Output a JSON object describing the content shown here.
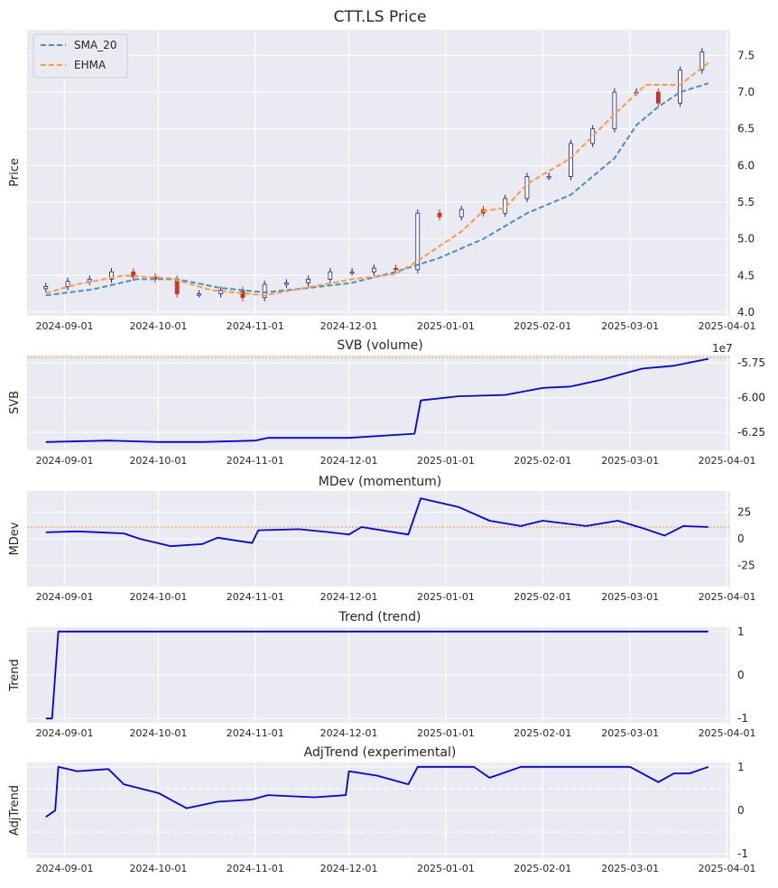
{
  "chart_data": [
    {
      "type": "line",
      "panel": "price",
      "title": "CTT.LS Price",
      "ylabel": "Price",
      "ylim": [
        3.95,
        7.85
      ],
      "yticks": [
        4.0,
        4.5,
        5.0,
        5.5,
        6.0,
        6.5,
        7.0,
        7.5
      ],
      "ytick_labels": [
        "4.0",
        "4.5",
        "5.0",
        "5.5",
        "6.0",
        "6.5",
        "7.0",
        "7.5"
      ],
      "yaxis_side": "right",
      "legend_position": "top-left",
      "candlesticks": {
        "description": "daily OHLC candles",
        "up_color": "#ffffff",
        "down_color": "#c0392b",
        "edge_color": "#1f1f8f",
        "closes": [
          [
            "2024-08-26",
            4.35
          ],
          [
            "2024-09-02",
            4.42
          ],
          [
            "2024-09-09",
            4.45
          ],
          [
            "2024-09-16",
            4.55
          ],
          [
            "2024-09-23",
            4.48
          ],
          [
            "2024-09-30",
            4.45
          ],
          [
            "2024-10-07",
            4.25
          ],
          [
            "2024-10-14",
            4.25
          ],
          [
            "2024-10-21",
            4.3
          ],
          [
            "2024-10-28",
            4.2
          ],
          [
            "2024-11-04",
            4.38
          ],
          [
            "2024-11-11",
            4.4
          ],
          [
            "2024-11-18",
            4.45
          ],
          [
            "2024-11-25",
            4.55
          ],
          [
            "2024-12-02",
            4.55
          ],
          [
            "2024-12-09",
            4.6
          ],
          [
            "2024-12-16",
            4.58
          ],
          [
            "2024-12-23",
            5.35
          ],
          [
            "2024-12-30",
            5.3
          ],
          [
            "2025-01-06",
            5.4
          ],
          [
            "2025-01-13",
            5.35
          ],
          [
            "2025-01-20",
            5.55
          ],
          [
            "2025-01-27",
            5.85
          ],
          [
            "2025-02-03",
            5.85
          ],
          [
            "2025-02-10",
            6.3
          ],
          [
            "2025-02-17",
            6.5
          ],
          [
            "2025-02-24",
            7.0
          ],
          [
            "2025-03-03",
            7.0
          ],
          [
            "2025-03-10",
            6.85
          ],
          [
            "2025-03-17",
            7.3
          ],
          [
            "2025-03-24",
            7.55
          ]
        ]
      },
      "series": [
        {
          "name": "SMA_20",
          "color": "#4a8ec4",
          "style": "dashed",
          "points": [
            [
              "2024-08-26",
              4.23
            ],
            [
              "2024-09-10",
              4.31
            ],
            [
              "2024-09-24",
              4.45
            ],
            [
              "2024-10-07",
              4.45
            ],
            [
              "2024-10-21",
              4.33
            ],
            [
              "2024-11-04",
              4.27
            ],
            [
              "2024-11-18",
              4.33
            ],
            [
              "2024-12-02",
              4.4
            ],
            [
              "2024-12-16",
              4.55
            ],
            [
              "2024-12-30",
              4.74
            ],
            [
              "2025-01-13",
              5.0
            ],
            [
              "2025-01-27",
              5.35
            ],
            [
              "2025-02-10",
              5.6
            ],
            [
              "2025-02-24",
              6.1
            ],
            [
              "2025-03-03",
              6.55
            ],
            [
              "2025-03-10",
              6.8
            ],
            [
              "2025-03-17",
              7.0
            ],
            [
              "2025-03-26",
              7.12
            ]
          ]
        },
        {
          "name": "EHMA",
          "color": "#ff9a40",
          "style": "dashed",
          "points": [
            [
              "2024-08-26",
              4.26
            ],
            [
              "2024-09-05",
              4.38
            ],
            [
              "2024-09-20",
              4.5
            ],
            [
              "2024-10-05",
              4.46
            ],
            [
              "2024-10-18",
              4.3
            ],
            [
              "2024-11-04",
              4.23
            ],
            [
              "2024-11-18",
              4.34
            ],
            [
              "2024-12-02",
              4.45
            ],
            [
              "2024-12-16",
              4.52
            ],
            [
              "2024-12-23",
              4.7
            ],
            [
              "2025-01-06",
              5.1
            ],
            [
              "2025-01-13",
              5.38
            ],
            [
              "2025-01-20",
              5.42
            ],
            [
              "2025-01-27",
              5.75
            ],
            [
              "2025-02-10",
              6.1
            ],
            [
              "2025-02-24",
              6.7
            ],
            [
              "2025-03-06",
              7.1
            ],
            [
              "2025-03-17",
              7.1
            ],
            [
              "2025-03-26",
              7.4
            ]
          ]
        }
      ]
    },
    {
      "type": "line",
      "panel": "svb",
      "title": "SVB (volume)",
      "ylabel": "SVB",
      "scale_label": "1e7",
      "ylim": [
        -6.38,
        -5.69
      ],
      "yticks": [
        -6.25,
        -6.0,
        -5.75
      ],
      "ytick_labels": [
        "-6.25",
        "-6.00",
        "-5.75"
      ],
      "yaxis_side": "right",
      "reference_line": {
        "value": -5.71,
        "color": "#ff9a40",
        "style": "dotted"
      },
      "series": [
        {
          "color": "#0000ee",
          "points": [
            [
              "2024-08-26",
              -6.32
            ],
            [
              "2024-09-15",
              -6.31
            ],
            [
              "2024-10-01",
              -6.32
            ],
            [
              "2024-10-15",
              -6.32
            ],
            [
              "2024-11-01",
              -6.31
            ],
            [
              "2024-11-05",
              -6.29
            ],
            [
              "2024-11-20",
              -6.29
            ],
            [
              "2024-12-01",
              -6.29
            ],
            [
              "2024-12-15",
              -6.27
            ],
            [
              "2024-12-22",
              -6.26
            ],
            [
              "2024-12-24",
              -6.02
            ],
            [
              "2025-01-05",
              -5.99
            ],
            [
              "2025-01-20",
              -5.98
            ],
            [
              "2025-02-01",
              -5.93
            ],
            [
              "2025-02-10",
              -5.92
            ],
            [
              "2025-02-20",
              -5.87
            ],
            [
              "2025-02-28",
              -5.82
            ],
            [
              "2025-03-05",
              -5.79
            ],
            [
              "2025-03-15",
              -5.77
            ],
            [
              "2025-03-26",
              -5.72
            ]
          ]
        }
      ]
    },
    {
      "type": "line",
      "panel": "mdev",
      "title": "MDev (momentum)",
      "ylabel": "MDev",
      "ylim": [
        -45,
        45
      ],
      "yticks": [
        -25,
        0,
        25
      ],
      "ytick_labels": [
        "-25",
        "0",
        "25"
      ],
      "yaxis_side": "right",
      "reference_line": {
        "value": 11,
        "color": "#ff9a40",
        "style": "dotted"
      },
      "series": [
        {
          "color": "#0000ee",
          "points": [
            [
              "2024-08-26",
              6
            ],
            [
              "2024-09-05",
              7
            ],
            [
              "2024-09-20",
              5
            ],
            [
              "2024-09-25",
              0
            ],
            [
              "2024-10-05",
              -7
            ],
            [
              "2024-10-15",
              -5
            ],
            [
              "2024-10-20",
              1
            ],
            [
              "2024-10-31",
              -4
            ],
            [
              "2024-11-02",
              8
            ],
            [
              "2024-11-15",
              9
            ],
            [
              "2024-11-25",
              6
            ],
            [
              "2024-12-01",
              4
            ],
            [
              "2024-12-05",
              11
            ],
            [
              "2024-12-20",
              4
            ],
            [
              "2024-12-24",
              38
            ],
            [
              "2025-01-05",
              30
            ],
            [
              "2025-01-15",
              17
            ],
            [
              "2025-01-25",
              12
            ],
            [
              "2025-02-01",
              17
            ],
            [
              "2025-02-15",
              12
            ],
            [
              "2025-02-25",
              17
            ],
            [
              "2025-03-05",
              10
            ],
            [
              "2025-03-12",
              3
            ],
            [
              "2025-03-18",
              12
            ],
            [
              "2025-03-26",
              11
            ]
          ]
        }
      ]
    },
    {
      "type": "line",
      "panel": "trend",
      "title": "Trend (trend)",
      "ylabel": "Trend",
      "ylim": [
        -1.1,
        1.1
      ],
      "yticks": [
        -1,
        0,
        1
      ],
      "ytick_labels": [
        "-1",
        "0",
        "1"
      ],
      "yaxis_side": "right",
      "series": [
        {
          "color": "#0000ee",
          "points": [
            [
              "2024-08-26",
              -1
            ],
            [
              "2024-08-28",
              -1
            ],
            [
              "2024-08-30",
              1
            ],
            [
              "2025-03-26",
              1
            ]
          ]
        }
      ]
    },
    {
      "type": "line",
      "panel": "adjtrend",
      "title": "AdjTrend (experimental)",
      "ylabel": "AdjTrend",
      "ylim": [
        -1.1,
        1.1
      ],
      "yticks": [
        -1,
        0,
        1
      ],
      "ytick_labels": [
        "-1",
        "0",
        "1"
      ],
      "yaxis_side": "right",
      "reference_lines": [
        {
          "value": 0.5,
          "color": "#ffffff",
          "style": "dashed"
        },
        {
          "value": -0.5,
          "color": "#ffffff",
          "style": "dashed"
        }
      ],
      "series": [
        {
          "color": "#0000ee",
          "points": [
            [
              "2024-08-26",
              -0.15
            ],
            [
              "2024-08-29",
              0.0
            ],
            [
              "2024-08-30",
              1.0
            ],
            [
              "2024-09-05",
              0.9
            ],
            [
              "2024-09-15",
              0.95
            ],
            [
              "2024-09-20",
              0.6
            ],
            [
              "2024-10-01",
              0.4
            ],
            [
              "2024-10-10",
              0.05
            ],
            [
              "2024-10-20",
              0.2
            ],
            [
              "2024-10-31",
              0.25
            ],
            [
              "2024-11-05",
              0.35
            ],
            [
              "2024-11-20",
              0.3
            ],
            [
              "2024-11-30",
              0.35
            ],
            [
              "2024-12-01",
              0.9
            ],
            [
              "2024-12-10",
              0.8
            ],
            [
              "2024-12-20",
              0.6
            ],
            [
              "2024-12-23",
              1.0
            ],
            [
              "2025-01-10",
              1.0
            ],
            [
              "2025-01-15",
              0.75
            ],
            [
              "2025-01-25",
              1.0
            ],
            [
              "2025-03-01",
              1.0
            ],
            [
              "2025-03-10",
              0.65
            ],
            [
              "2025-03-15",
              0.85
            ],
            [
              "2025-03-20",
              0.85
            ],
            [
              "2025-03-26",
              1.0
            ]
          ]
        }
      ]
    }
  ],
  "xaxis": {
    "range": [
      "2024-08-20",
      "2025-04-02"
    ],
    "ticks": [
      "2024-09-01",
      "2024-10-01",
      "2024-11-01",
      "2024-12-01",
      "2025-01-01",
      "2025-02-01",
      "2025-03-01",
      "2025-04-01"
    ],
    "tick_labels": [
      "2024-09-01",
      "2024-10-01",
      "2024-11-01",
      "2024-12-01",
      "2025-01-01",
      "2025-02-01",
      "2025-03-01",
      "2025-04-01"
    ]
  },
  "style": {
    "plot_background": "#eaeaf2",
    "grid_color": "#ffffff",
    "grid": true,
    "line_color": "#0000ee"
  }
}
